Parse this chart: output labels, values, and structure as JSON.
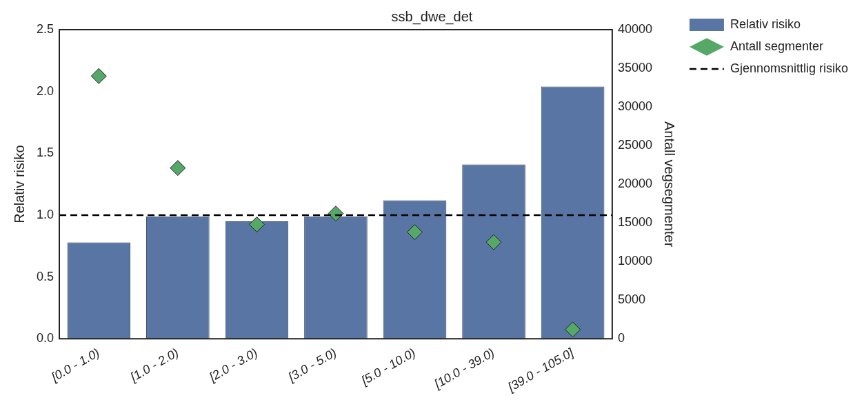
{
  "chart_data": {
    "type": "bar",
    "title": "ssb_dwe_det",
    "ylabel": "Relativ risiko",
    "y2label": "Antall vegsegmenter",
    "categories": [
      "[0.0 - 1.0)",
      "[1.0 - 2.0)",
      "[2.0 - 3.0)",
      "[3.0 - 5.0)",
      "[5.0 - 10.0)",
      "[10.0 - 39.0)",
      "[39.0 - 105.0]"
    ],
    "series": [
      {
        "name": "Relativ risiko",
        "color": "#5875a4",
        "values": [
          0.78,
          0.99,
          0.95,
          0.99,
          1.12,
          1.41,
          2.04
        ]
      },
      {
        "name": "Antall segmenter",
        "type": "scatter",
        "axis": "y2",
        "marker": "diamond",
        "color": "#55a868",
        "values": [
          34000,
          22100,
          14800,
          16200,
          13800,
          12500,
          1200
        ]
      }
    ],
    "ylim": [
      0,
      2.5
    ],
    "yticks": [
      {
        "value": 0,
        "label": "0.0"
      },
      0.5,
      {
        "value": 1,
        "label": "1.0"
      },
      1.5,
      {
        "value": 2,
        "label": "2.0"
      },
      2.5
    ],
    "y2lim": [
      0,
      40000
    ],
    "y2ticks": [
      0,
      5000,
      10000,
      15000,
      20000,
      25000,
      30000,
      35000,
      40000
    ],
    "ref_lines": [
      {
        "axis": "y",
        "value": 1.0,
        "label": "Gjennomsnittlig risiko",
        "color": "#000000",
        "line_style": "dashed"
      }
    ],
    "grid": false,
    "legend": "top right"
  }
}
